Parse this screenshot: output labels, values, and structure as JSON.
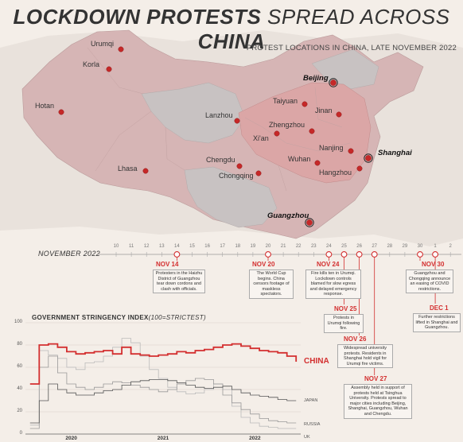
{
  "title": {
    "bold1": "LOCKDOWN PROTESTS",
    "light": "SPREAD ACROSS",
    "bold2": "CHINA"
  },
  "subtitle": "PROTEST LOCATIONS IN CHINA, LATE NOVEMBER 2022",
  "cities": [
    {
      "name": "Urumqi",
      "major": false
    },
    {
      "name": "Korla",
      "major": false
    },
    {
      "name": "Hotan",
      "major": false
    },
    {
      "name": "Lhasa",
      "major": false
    },
    {
      "name": "Beijing",
      "major": true
    },
    {
      "name": "Taiyuan",
      "major": false
    },
    {
      "name": "Jinan",
      "major": false
    },
    {
      "name": "Lanzhou",
      "major": false
    },
    {
      "name": "Zhengzhou",
      "major": false
    },
    {
      "name": "Xi'an",
      "major": false
    },
    {
      "name": "Nanjing",
      "major": false
    },
    {
      "name": "Shanghai",
      "major": true
    },
    {
      "name": "Chengdu",
      "major": false
    },
    {
      "name": "Wuhan",
      "major": false
    },
    {
      "name": "Hangzhou",
      "major": false
    },
    {
      "name": "Chongqing",
      "major": false
    },
    {
      "name": "Guangzhou",
      "major": true
    }
  ],
  "timeline": {
    "label": "NOVEMBER 2022",
    "days": [
      "10",
      "11",
      "12",
      "13",
      "14",
      "15",
      "16",
      "17",
      "18",
      "19",
      "20",
      "21",
      "22",
      "23",
      "24",
      "25",
      "26",
      "27",
      "28",
      "29",
      "30",
      "1",
      "2"
    ]
  },
  "events": [
    {
      "date": "NOV 14",
      "text": "Protesters in the Haizhu District of Guangzhou tear down cordons and clash with officials."
    },
    {
      "date": "NOV 20",
      "text": "The World Cup begins. China censors footage of maskless spectators."
    },
    {
      "date": "NOV 24",
      "text": "Fire kills ten in Urumqi. Lockdown controls blamed for slow egress and delayed emergency response."
    },
    {
      "date": "NOV 25",
      "text": "Protests in Urumqi following fire."
    },
    {
      "date": "NOV 26",
      "text": "Widespread university protests. Residents in Shanghai hold vigil for Urumqi fire victims."
    },
    {
      "date": "NOV 27",
      "text": "Assembly held in support of protests held at Tsinghua University. Protests spread to major cities including Beijing, Shanghai, Guangzhou, Wuhan and Chengdu."
    },
    {
      "date": "NOV 30",
      "text": "Guangzhou and Chongqing announce an easing of COVID restrictions."
    },
    {
      "date": "DEC 1",
      "text": "Further restrictions lifted in Shanghai and Guangzhou."
    }
  ],
  "chart_data": {
    "type": "line",
    "title": "GOVERNMENT STRINGENCY INDEX",
    "title_note": "(100=STRICTEST)",
    "ylim": [
      0,
      100
    ],
    "y_ticks": [
      "100",
      "80",
      "60",
      "40",
      "20",
      "0"
    ],
    "x_labels": [
      "2020",
      "2021",
      "2022"
    ],
    "x": [
      2020.05,
      2020.15,
      2020.25,
      2020.35,
      2020.45,
      2020.55,
      2020.65,
      2020.75,
      2020.85,
      2020.95,
      2021.05,
      2021.15,
      2021.25,
      2021.35,
      2021.45,
      2021.55,
      2021.65,
      2021.75,
      2021.85,
      2021.95,
      2022.05,
      2022.15,
      2022.25,
      2022.35,
      2022.45,
      2022.55,
      2022.65,
      2022.75,
      2022.85,
      2022.95
    ],
    "series": [
      {
        "name": "CHINA",
        "color": "#d32f2f",
        "values": [
          45,
          80,
          81,
          78,
          74,
          72,
          73,
          74,
          75,
          72,
          78,
          72,
          71,
          70,
          71,
          72,
          74,
          73,
          75,
          76,
          78,
          80,
          81,
          79,
          77,
          75,
          74,
          73,
          70,
          65
        ]
      },
      {
        "name": "JAPAN",
        "color": "#555555",
        "values": [
          10,
          30,
          45,
          40,
          37,
          35,
          35,
          37,
          39,
          40,
          44,
          47,
          48,
          49,
          49,
          48,
          46,
          44,
          42,
          41,
          42,
          43,
          40,
          37,
          35,
          34,
          33,
          31,
          30,
          30
        ]
      },
      {
        "name": "RUSSIA",
        "color": "#999999",
        "values": [
          5,
          60,
          70,
          55,
          45,
          42,
          40,
          42,
          45,
          47,
          46,
          44,
          42,
          40,
          38,
          40,
          45,
          48,
          50,
          49,
          45,
          35,
          28,
          22,
          18,
          14,
          12,
          11,
          10,
          10
        ]
      },
      {
        "name": "UK",
        "color": "#bbbbbb",
        "values": [
          8,
          75,
          71,
          68,
          60,
          58,
          64,
          65,
          70,
          78,
          86,
          82,
          70,
          58,
          50,
          42,
          38,
          36,
          37,
          40,
          45,
          40,
          25,
          15,
          10,
          7,
          6,
          5,
          5,
          5
        ]
      }
    ]
  }
}
